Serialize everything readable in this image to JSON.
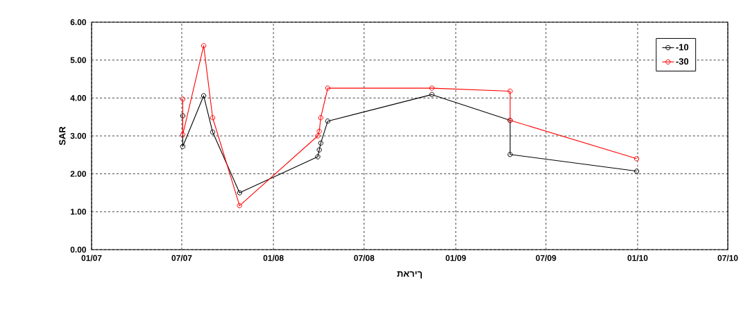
{
  "chart_data": {
    "type": "line",
    "xlabel": "תאריך",
    "ylabel": "SAR",
    "xlim": [
      "2007-01",
      "2010-07"
    ],
    "xticks": [
      {
        "value": "2007-01",
        "label": "01/07"
      },
      {
        "value": "2007-07",
        "label": "07/07"
      },
      {
        "value": "2008-01",
        "label": "01/08"
      },
      {
        "value": "2008-07",
        "label": "07/08"
      },
      {
        "value": "2009-01",
        "label": "01/09"
      },
      {
        "value": "2009-07",
        "label": "07/09"
      },
      {
        "value": "2010-01",
        "label": "01/10"
      },
      {
        "value": "2010-07",
        "label": "07/10"
      }
    ],
    "ylim": [
      0,
      6
    ],
    "yticks": [
      {
        "value": 0,
        "label": "0.00"
      },
      {
        "value": 1,
        "label": "1.00"
      },
      {
        "value": 2,
        "label": "2.00"
      },
      {
        "value": 3,
        "label": "3.00"
      },
      {
        "value": 4,
        "label": "4.00"
      },
      {
        "value": 5,
        "label": "5.00"
      },
      {
        "value": 6,
        "label": "6.00"
      }
    ],
    "grid": true,
    "legend": "top right",
    "marker": "circle",
    "line_style": "solid",
    "series": [
      {
        "name": "-10",
        "color": "#000000",
        "x": [
          "2007-07-03",
          "2007-07-03",
          "2007-08-14",
          "2007-09-01",
          "2007-10-25",
          "2008-03-30",
          "2008-04-02",
          "2008-04-05",
          "2008-04-19",
          "2008-11-14",
          "2009-04-20",
          "2009-04-20",
          "2009-12-30"
        ],
        "values": [
          3.53,
          2.72,
          4.06,
          3.1,
          1.5,
          2.45,
          2.63,
          2.81,
          3.39,
          4.09,
          3.41,
          2.51,
          2.07
        ]
      },
      {
        "name": "-30",
        "color": "#ff0000",
        "x": [
          "2007-07-03",
          "2007-07-03",
          "2007-08-14",
          "2007-09-01",
          "2007-10-25",
          "2008-03-30",
          "2008-04-02",
          "2008-04-05",
          "2008-04-19",
          "2008-11-14",
          "2009-04-20",
          "2009-04-20",
          "2009-12-30"
        ],
        "values": [
          3.97,
          3.03,
          5.38,
          3.48,
          1.16,
          3.0,
          3.12,
          3.48,
          4.26,
          4.26,
          4.18,
          3.41,
          2.4
        ]
      }
    ]
  }
}
